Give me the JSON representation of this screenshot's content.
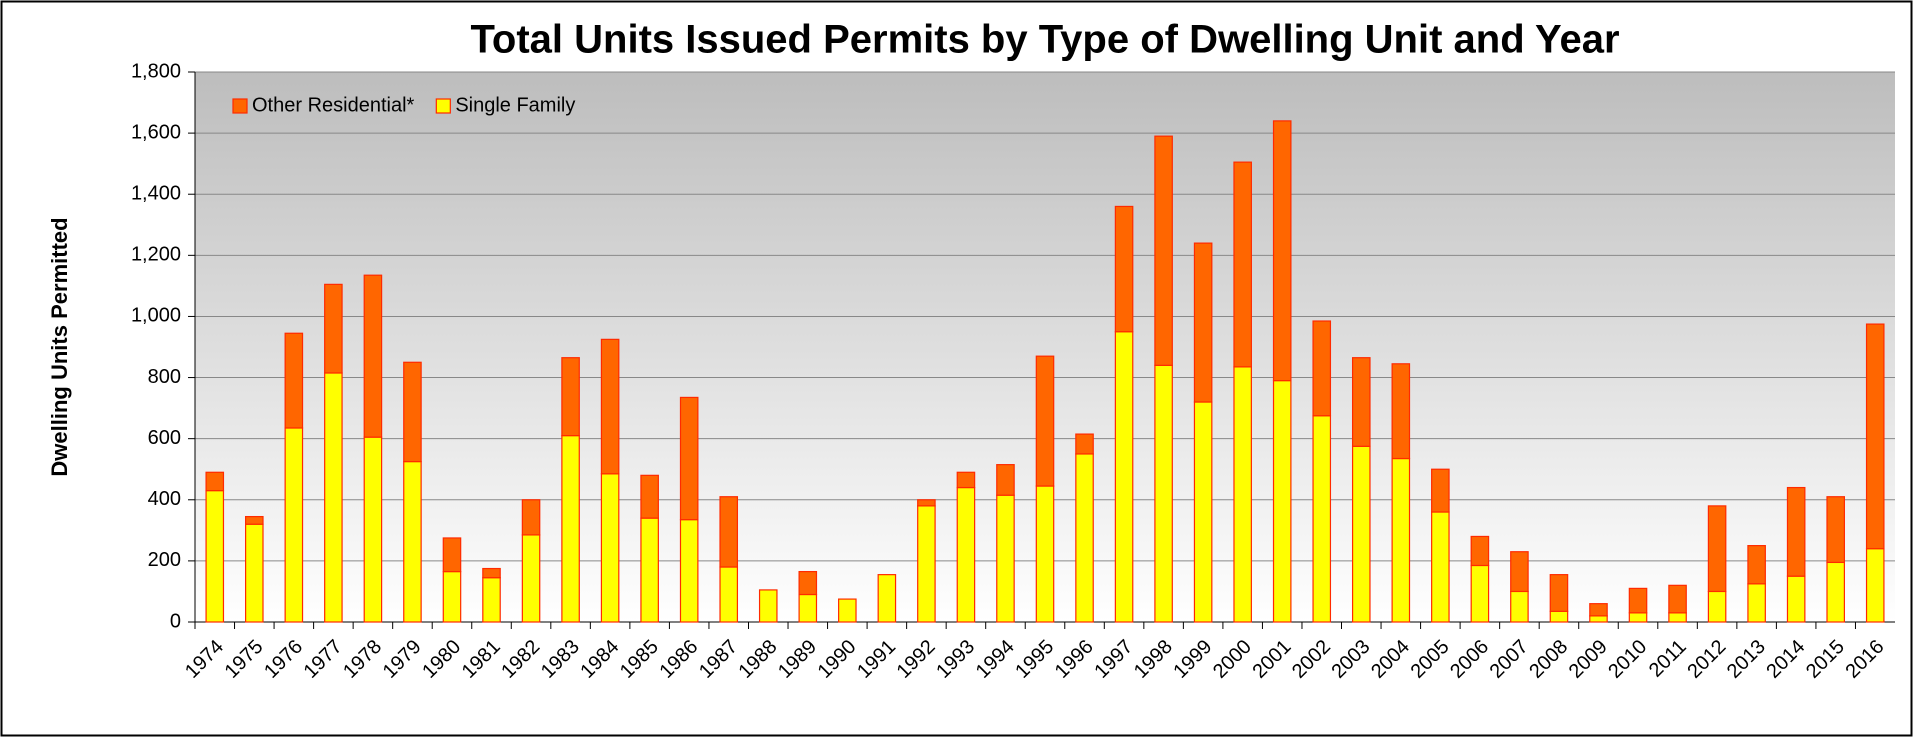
{
  "chart_data": {
    "type": "stacked_bar",
    "title": "Total Units Issued Permits by Type of Dwelling Unit and Year",
    "y_label": "Dwelling Units Permitted",
    "categories": [
      "1974",
      "1975",
      "1976",
      "1977",
      "1978",
      "1979",
      "1980",
      "1981",
      "1982",
      "1983",
      "1984",
      "1985",
      "1986",
      "1987",
      "1988",
      "1989",
      "1990",
      "1991",
      "1992",
      "1993",
      "1994",
      "1995",
      "1996",
      "1997",
      "1998",
      "1999",
      "2000",
      "2001",
      "2002",
      "2003",
      "2004",
      "2005",
      "2006",
      "2007",
      "2008",
      "2009",
      "2010",
      "2011",
      "2012",
      "2013",
      "2014",
      "2015",
      "2016"
    ],
    "series": [
      {
        "name": "Other Residential*",
        "color": "#ff6600",
        "values": [
          60,
          25,
          310,
          290,
          530,
          325,
          110,
          30,
          115,
          255,
          440,
          140,
          400,
          230,
          0,
          75,
          0,
          0,
          20,
          50,
          100,
          425,
          65,
          410,
          750,
          520,
          670,
          850,
          310,
          290,
          310,
          140,
          95,
          130,
          120,
          40,
          80,
          90,
          280,
          125,
          290,
          215,
          735
        ]
      },
      {
        "name": "Single Family",
        "color": "#ffff00",
        "values": [
          430,
          320,
          635,
          815,
          605,
          525,
          165,
          145,
          285,
          610,
          485,
          340,
          335,
          180,
          105,
          90,
          75,
          155,
          380,
          440,
          415,
          445,
          550,
          950,
          840,
          720,
          835,
          790,
          675,
          575,
          535,
          360,
          185,
          100,
          35,
          20,
          30,
          30,
          100,
          125,
          150,
          195,
          240
        ]
      }
    ],
    "stack_order": [
      "Single Family",
      "Other Residential*"
    ],
    "ylim": [
      0,
      1800
    ],
    "yticks": [
      0,
      {
        "value": 200,
        "label": "200"
      },
      {
        "value": 400,
        "label": "400"
      },
      {
        "value": 600,
        "label": "600"
      },
      {
        "value": 800,
        "label": "800"
      },
      {
        "value": 1000,
        "label": "1,000"
      },
      {
        "value": 1200,
        "label": "1,200"
      },
      {
        "value": 1400,
        "label": "1,400"
      },
      {
        "value": 1600,
        "label": "1,600"
      },
      {
        "value": 1800,
        "label": "1,800"
      }
    ],
    "grid": true,
    "legend": "top-left"
  }
}
